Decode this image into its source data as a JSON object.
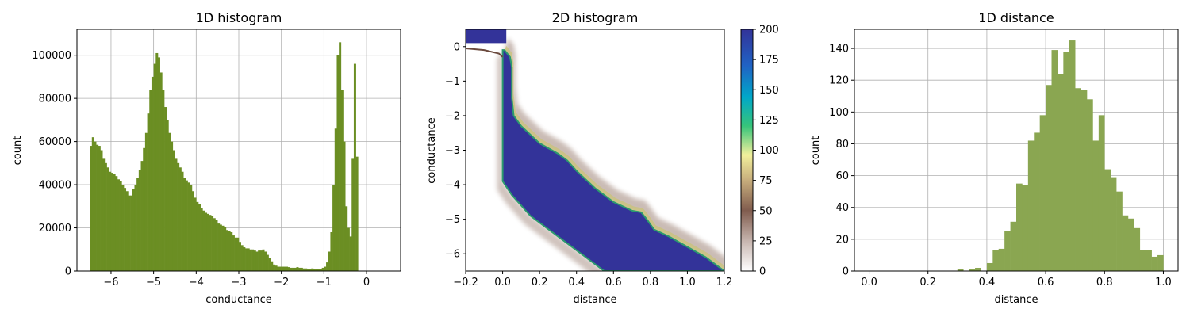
{
  "chart_data": [
    {
      "type": "bar",
      "title": "1D histogram",
      "xlabel": "conductance",
      "ylabel": "count",
      "xlim": [
        -6.8,
        0.8
      ],
      "ylim": [
        0,
        112000
      ],
      "grid": true,
      "bar_color": "#6b8e23",
      "xticks": [
        -6,
        -5,
        -4,
        -3,
        -2,
        -1,
        0
      ],
      "xtick_labels": [
        "−6",
        "−5",
        "−4",
        "−3",
        "−2",
        "−1",
        "0"
      ],
      "yticks": [
        0,
        20000,
        40000,
        60000,
        80000,
        100000
      ],
      "ytick_labels": [
        "0",
        "20000",
        "40000",
        "60000",
        "80000",
        "100000"
      ],
      "bins": {
        "start": -6.5,
        "width": 0.05,
        "values": [
          58000,
          62000,
          60000,
          58500,
          58000,
          56000,
          52000,
          50000,
          48000,
          46000,
          45500,
          45000,
          44000,
          42500,
          41500,
          40000,
          38500,
          37000,
          35000,
          35000,
          38000,
          40000,
          43000,
          47000,
          51000,
          57000,
          64000,
          73000,
          84000,
          90000,
          96000,
          101000,
          99000,
          92000,
          84000,
          76000,
          70000,
          64000,
          60000,
          56000,
          52000,
          50000,
          48000,
          46000,
          43000,
          42000,
          41000,
          40000,
          37000,
          34000,
          32000,
          31000,
          29000,
          28000,
          27000,
          26500,
          26000,
          25500,
          24500,
          23500,
          22000,
          21500,
          21000,
          20500,
          19000,
          18500,
          18000,
          16500,
          15500,
          15500,
          13500,
          12000,
          11000,
          10500,
          10500,
          10000,
          10000,
          9500,
          9000,
          9500,
          9500,
          10000,
          9000,
          7500,
          6000,
          4500,
          3000,
          2500,
          2000,
          2000,
          2000,
          2000,
          2000,
          1800,
          1500,
          1500,
          1500,
          1800,
          1500,
          1500,
          1200,
          1200,
          1000,
          1000,
          1200,
          1000,
          1000,
          1000,
          1000,
          1500,
          2000,
          4000,
          9000,
          18000,
          40000,
          66000,
          100000,
          106000,
          84000,
          60000,
          30000,
          20000,
          16000,
          52000,
          96000,
          53000
        ]
      }
    },
    {
      "type": "heatmap",
      "title": "2D histogram",
      "xlabel": "distance",
      "ylabel": "conductance",
      "xlim": [
        -0.2,
        1.2
      ],
      "ylim": [
        -6.5,
        0.5
      ],
      "colormap": "terrain_r",
      "colorbar_range": [
        0,
        200
      ],
      "xticks": [
        -0.2,
        0.0,
        0.2,
        0.4,
        0.6,
        0.8,
        1.0,
        1.2
      ],
      "xtick_labels": [
        "−0.2",
        "0.0",
        "0.2",
        "0.4",
        "0.6",
        "0.8",
        "1.0",
        "1.2"
      ],
      "yticks": [
        0,
        -1,
        -2,
        -3,
        -4,
        -5,
        -6
      ],
      "ytick_labels": [
        "0",
        "−1",
        "−2",
        "−3",
        "−4",
        "−5",
        "−6"
      ],
      "colorbar_ticks": [
        0,
        25,
        50,
        75,
        100,
        125,
        150,
        175,
        200
      ],
      "colorbar_tick_labels": [
        "0",
        "25",
        "50",
        "75",
        "100",
        "125",
        "150",
        "175",
        "200"
      ],
      "saturated_band": {
        "upper_edge": [
          [
            0.01,
            -0.1
          ],
          [
            0.04,
            -0.3
          ],
          [
            0.05,
            -0.6
          ],
          [
            0.05,
            -1.5
          ],
          [
            0.06,
            -2.0
          ],
          [
            0.1,
            -2.3
          ],
          [
            0.2,
            -2.8
          ],
          [
            0.3,
            -3.1
          ],
          [
            0.35,
            -3.3
          ],
          [
            0.4,
            -3.6
          ],
          [
            0.5,
            -4.1
          ],
          [
            0.6,
            -4.5
          ],
          [
            0.7,
            -4.75
          ],
          [
            0.75,
            -4.8
          ],
          [
            0.78,
            -5.0
          ],
          [
            0.82,
            -5.3
          ],
          [
            0.9,
            -5.5
          ],
          [
            1.0,
            -5.8
          ],
          [
            1.1,
            -6.1
          ],
          [
            1.2,
            -6.5
          ]
        ],
        "lower_edge": [
          [
            0.0,
            -0.1
          ],
          [
            0.0,
            -3.9
          ],
          [
            0.05,
            -4.3
          ],
          [
            0.15,
            -4.9
          ],
          [
            0.3,
            -5.5
          ],
          [
            0.45,
            -6.1
          ],
          [
            0.55,
            -6.5
          ]
        ]
      },
      "top_left_band": [
        [
          -0.2,
          0.5
        ],
        [
          0.02,
          0.5
        ],
        [
          0.02,
          0.1
        ],
        [
          -0.2,
          0.1
        ]
      ],
      "diagonal_line": [
        [
          -0.2,
          -0.05
        ],
        [
          -0.1,
          -0.1
        ],
        [
          -0.02,
          -0.2
        ],
        [
          0.0,
          -0.3
        ]
      ]
    },
    {
      "type": "bar",
      "title": "1D distance",
      "xlabel": "distance",
      "ylabel": "count",
      "xlim": [
        -0.05,
        1.05
      ],
      "ylim": [
        0,
        152
      ],
      "grid": true,
      "bar_color": "#8aa651",
      "xticks": [
        0.0,
        0.2,
        0.4,
        0.6,
        0.8,
        1.0
      ],
      "xtick_labels": [
        "0.0",
        "0.2",
        "0.4",
        "0.6",
        "0.8",
        "1.0"
      ],
      "yticks": [
        0,
        20,
        40,
        60,
        80,
        100,
        120,
        140
      ],
      "ytick_labels": [
        "0",
        "20",
        "40",
        "60",
        "80",
        "100",
        "120",
        "140"
      ],
      "bins": {
        "start": 0.0,
        "width": 0.02,
        "values": [
          0,
          0,
          0,
          0,
          0,
          0,
          0,
          0,
          0,
          0,
          0,
          0,
          0,
          0,
          0,
          1,
          0,
          1,
          2,
          0,
          5,
          13,
          14,
          25,
          31,
          55,
          54,
          82,
          87,
          98,
          117,
          139,
          124,
          138,
          145,
          115,
          114,
          108,
          82,
          98,
          64,
          59,
          50,
          35,
          33,
          27,
          13,
          13,
          9,
          10
        ]
      }
    }
  ]
}
